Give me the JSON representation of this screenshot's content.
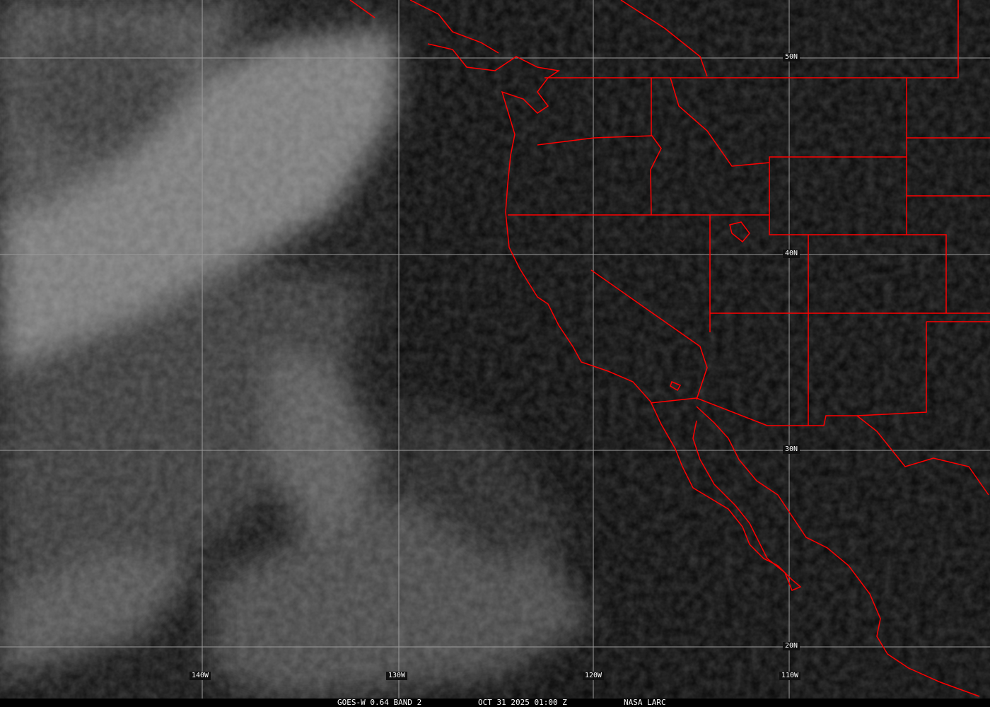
{
  "caption": {
    "satellite_band": "GOES-W 0.64 BAND 2",
    "datetime": "OCT 31 2025 01:00 Z",
    "source": "NASA LARC"
  },
  "grid": {
    "latitudes": [
      "50N",
      "40N",
      "30N",
      "20N"
    ],
    "longitudes": [
      "140W",
      "130W",
      "120W",
      "110W"
    ]
  },
  "colors": {
    "boundaries": "#ff0000",
    "grid": "#9a9a9a",
    "background": "#0d0d0d"
  }
}
